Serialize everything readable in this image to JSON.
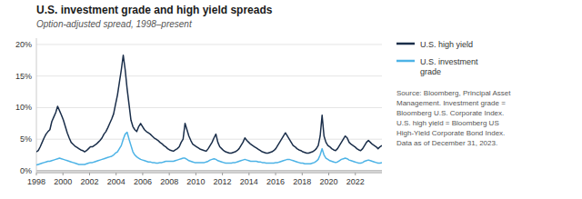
{
  "chart_data": {
    "type": "line",
    "title": "U.S. investment grade and high yield spreads",
    "subtitle": "Option-adjusted spread, 1998–present",
    "source": "Source: Bloomberg, Principal Asset\nManagement. Investment grade =\nBloomberg U.S. Corporate Index.\nU.S. high yield = Bloomberg US\nHigh-Yield Corporate Bond Index.\nData as of December 31, 2023.",
    "x": [
      1998,
      1998.145,
      1998.291,
      1998.436,
      1998.581,
      1998.726,
      1998.872,
      1999.017,
      1999.162,
      1999.307,
      1999.453,
      1999.598,
      1999.743,
      1999.888,
      2000.034,
      2000.179,
      2000.324,
      2000.469,
      2000.615,
      2000.76,
      2000.905,
      2001.05,
      2001.196,
      2001.341,
      2001.486,
      2001.631,
      2001.777,
      2001.922,
      2002.067,
      2002.212,
      2002.358,
      2002.503,
      2002.648,
      2002.793,
      2002.939,
      2003.084,
      2003.229,
      2003.374,
      2003.52,
      2003.665,
      2003.81,
      2003.955,
      2004.101,
      2004.246,
      2004.391,
      2004.536,
      2004.682,
      2004.827,
      2004.972,
      2005.117,
      2005.263,
      2005.408,
      2005.553,
      2005.698,
      2005.844,
      2005.989,
      2006.134,
      2006.279,
      2006.425,
      2006.57,
      2006.715,
      2006.86,
      2007.006,
      2007.151,
      2007.296,
      2007.441,
      2007.587,
      2007.732,
      2007.877,
      2008.022,
      2008.168,
      2008.313,
      2008.458,
      2008.603,
      2008.749,
      2008.894,
      2009.039,
      2009.184,
      2009.33,
      2009.475,
      2009.62,
      2009.765,
      2009.911,
      2010.056,
      2010.201,
      2010.346,
      2010.492,
      2010.637,
      2010.782,
      2010.927,
      2011.073,
      2011.218,
      2011.363,
      2011.508,
      2011.654,
      2011.799,
      2011.944,
      2012.089,
      2012.235,
      2012.38,
      2012.525,
      2012.67,
      2012.816,
      2012.961,
      2013.106,
      2013.251,
      2013.397,
      2013.542,
      2013.687,
      2013.832,
      2013.978,
      2014.123,
      2014.268,
      2014.413,
      2014.559,
      2014.704,
      2014.849,
      2014.994,
      2015.14,
      2015.285,
      2015.43,
      2015.575,
      2015.721,
      2015.866,
      2016.011,
      2016.156,
      2016.302,
      2016.447,
      2016.592,
      2016.737,
      2016.883,
      2017.028,
      2017.173,
      2017.318,
      2017.464,
      2017.609,
      2017.754,
      2017.899,
      2018.045,
      2018.19,
      2018.335,
      2018.48,
      2018.626,
      2018.771,
      2018.916,
      2019.061,
      2019.207,
      2019.352,
      2019.497,
      2019.642,
      2019.788,
      2019.933,
      2020.078,
      2020.223,
      2020.369,
      2020.514,
      2020.659,
      2020.804,
      2020.95,
      2021.095,
      2021.24,
      2021.385,
      2021.531,
      2021.676,
      2021.821,
      2021.966,
      2022.112,
      2022.257,
      2022.402,
      2022.547,
      2022.693,
      2022.838,
      2022.983,
      2023.128,
      2023.274,
      2023.419,
      2023.564,
      2023.709,
      2023.855,
      2024
    ],
    "series": [
      {
        "name": "U.S. high yield",
        "color": "#1a2e4a",
        "values": [
          3.0,
          3.2,
          3.8,
          4.5,
          5.2,
          5.8,
          6.2,
          6.5,
          7.8,
          8.5,
          9.2,
          10.2,
          9.5,
          8.8,
          8.0,
          7.0,
          6.0,
          5.2,
          4.5,
          4.2,
          3.9,
          3.7,
          3.5,
          3.3,
          3.2,
          3.0,
          3.2,
          3.5,
          3.8,
          3.8,
          4.0,
          4.2,
          4.5,
          4.8,
          5.2,
          5.8,
          6.2,
          6.8,
          7.5,
          8.2,
          9.0,
          10.5,
          12.0,
          14.0,
          16.0,
          18.3,
          16.0,
          13.0,
          10.5,
          8.0,
          7.0,
          6.5,
          6.2,
          7.0,
          7.5,
          7.0,
          6.5,
          6.2,
          6.0,
          5.8,
          5.5,
          5.2,
          5.0,
          4.8,
          4.5,
          4.3,
          4.0,
          3.8,
          3.5,
          3.3,
          3.2,
          3.1,
          3.3,
          3.5,
          3.8,
          4.5,
          5.0,
          7.5,
          6.5,
          5.5,
          4.8,
          4.2,
          4.0,
          3.8,
          3.6,
          3.4,
          3.3,
          3.2,
          3.1,
          3.5,
          4.0,
          4.5,
          5.2,
          5.8,
          4.5,
          3.8,
          3.5,
          3.2,
          3.0,
          2.9,
          2.8,
          2.8,
          2.9,
          3.0,
          3.2,
          3.5,
          4.0,
          4.5,
          5.2,
          4.8,
          4.5,
          4.2,
          4.0,
          3.8,
          3.6,
          3.4,
          3.2,
          3.0,
          2.9,
          2.8,
          2.8,
          2.9,
          3.0,
          3.2,
          3.5,
          4.0,
          4.5,
          5.0,
          5.5,
          6.0,
          5.5,
          5.0,
          4.5,
          4.0,
          3.8,
          3.5,
          3.3,
          3.2,
          3.0,
          2.9,
          2.8,
          2.8,
          2.9,
          3.0,
          3.2,
          3.5,
          4.0,
          5.5,
          8.8,
          5.5,
          4.5,
          4.0,
          3.8,
          3.5,
          3.3,
          3.2,
          3.5,
          4.0,
          4.5,
          5.0,
          5.5,
          5.2,
          4.5,
          4.2,
          4.0,
          3.8,
          3.5,
          3.3,
          3.2,
          3.5,
          4.0,
          4.5,
          4.8,
          4.5,
          4.2,
          4.0,
          3.8,
          3.5,
          3.8,
          4.0
        ]
      },
      {
        "name": "U.S. investment\ngrade",
        "color": "#4db3e6",
        "values": [
          0.9,
          1.0,
          1.1,
          1.2,
          1.3,
          1.4,
          1.5,
          1.5,
          1.6,
          1.7,
          1.8,
          1.9,
          2.0,
          1.9,
          1.8,
          1.7,
          1.6,
          1.5,
          1.4,
          1.3,
          1.2,
          1.1,
          1.0,
          1.0,
          1.0,
          1.0,
          1.1,
          1.2,
          1.3,
          1.3,
          1.4,
          1.5,
          1.6,
          1.7,
          1.8,
          1.9,
          2.0,
          2.1,
          2.2,
          2.3,
          2.5,
          2.8,
          3.0,
          3.5,
          4.0,
          5.0,
          5.8,
          6.1,
          5.0,
          4.0,
          3.0,
          2.5,
          2.2,
          2.0,
          1.8,
          1.7,
          1.6,
          1.5,
          1.4,
          1.4,
          1.3,
          1.3,
          1.2,
          1.2,
          1.3,
          1.3,
          1.4,
          1.5,
          1.5,
          1.5,
          1.5,
          1.5,
          1.6,
          1.7,
          1.8,
          1.9,
          2.0,
          2.0,
          1.8,
          1.6,
          1.5,
          1.4,
          1.3,
          1.3,
          1.3,
          1.3,
          1.3,
          1.3,
          1.4,
          1.5,
          1.7,
          1.8,
          1.9,
          1.8,
          1.6,
          1.5,
          1.4,
          1.3,
          1.2,
          1.2,
          1.2,
          1.2,
          1.3,
          1.3,
          1.4,
          1.5,
          1.6,
          1.7,
          1.8,
          1.7,
          1.6,
          1.5,
          1.5,
          1.5,
          1.5,
          1.4,
          1.4,
          1.3,
          1.3,
          1.2,
          1.2,
          1.2,
          1.2,
          1.2,
          1.3,
          1.3,
          1.4,
          1.5,
          1.6,
          1.7,
          1.8,
          1.8,
          1.7,
          1.6,
          1.5,
          1.4,
          1.3,
          1.2,
          1.2,
          1.1,
          1.1,
          1.1,
          1.1,
          1.2,
          1.3,
          1.5,
          1.8,
          2.5,
          3.5,
          2.5,
          2.0,
          1.8,
          1.6,
          1.5,
          1.4,
          1.3,
          1.4,
          1.6,
          1.8,
          1.9,
          2.0,
          1.9,
          1.7,
          1.6,
          1.5,
          1.4,
          1.3,
          1.2,
          1.2,
          1.3,
          1.5,
          1.6,
          1.7,
          1.6,
          1.5,
          1.4,
          1.3,
          1.2,
          1.2,
          1.3
        ]
      }
    ],
    "xlim": [
      1998.0,
      2024.0
    ],
    "xticks": [
      1998,
      2000,
      2002,
      2004,
      2006,
      2008,
      2010,
      2012,
      2014,
      2016,
      2018,
      2020,
      2022
    ],
    "ylim": [
      -0.3,
      21
    ],
    "yticks": [
      {
        "value": 0,
        "label": "0%"
      },
      {
        "value": 5,
        "label": "5%"
      },
      {
        "value": 10,
        "label": "10%"
      },
      {
        "value": 15,
        "label": "15%"
      },
      {
        "value": 20,
        "label": "20%"
      }
    ],
    "grid": true,
    "legend": "right"
  }
}
